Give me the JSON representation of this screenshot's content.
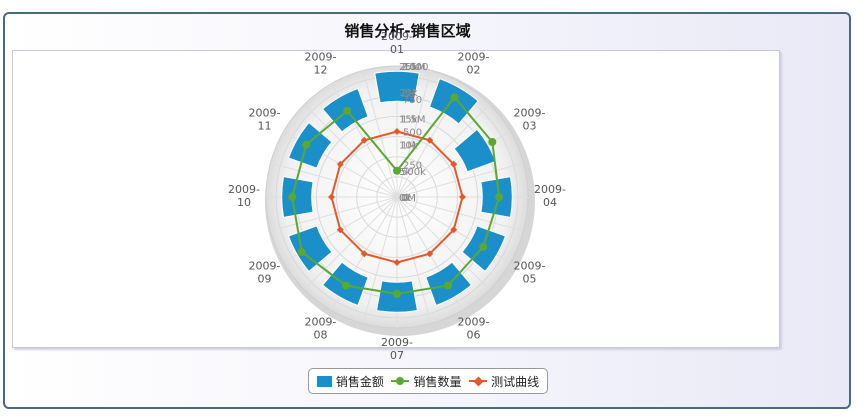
{
  "chart_data": {
    "type": "polar",
    "title": "销售分析-销售区域",
    "categories": [
      "2009-01",
      "2009-02",
      "2009-03",
      "2009-04",
      "2009-05",
      "2009-06",
      "2009-07",
      "2009-08",
      "2009-09",
      "2009-10",
      "2009-11",
      "2009-12"
    ],
    "bar_axis_ticks": [
      "0M",
      "500k",
      "1M",
      "1.5M",
      "2M",
      "2.5M"
    ],
    "line_axis_ticks": [
      "0k",
      "5k",
      "10k",
      "15k",
      "20k",
      "25k"
    ],
    "test_axis_ticks": [
      "0",
      "250",
      "500",
      "750",
      "1000"
    ],
    "series": [
      {
        "name": "销售金额",
        "type": "column",
        "color": "#1a8fc9",
        "values": [
          2.4,
          2.4,
          2.0,
          2.2,
          2.2,
          2.2,
          2.2,
          2.2,
          2.2,
          2.2,
          2.2,
          2.2
        ]
      },
      {
        "name": "销售数量",
        "type": "line",
        "color": "#5aa832",
        "values": [
          5,
          22,
          21,
          19.5,
          19,
          19.5,
          18.5,
          19.5,
          21,
          20,
          20,
          19
        ]
      },
      {
        "name": "测试曲线",
        "type": "line",
        "color": "#e35a2a",
        "values": [
          500,
          500,
          500,
          500,
          500,
          500,
          500,
          500,
          500,
          500,
          500,
          500
        ]
      }
    ]
  },
  "legend": {
    "items": [
      {
        "label": "销售金额"
      },
      {
        "label": "销售数量"
      },
      {
        "label": "测试曲线"
      }
    ]
  }
}
